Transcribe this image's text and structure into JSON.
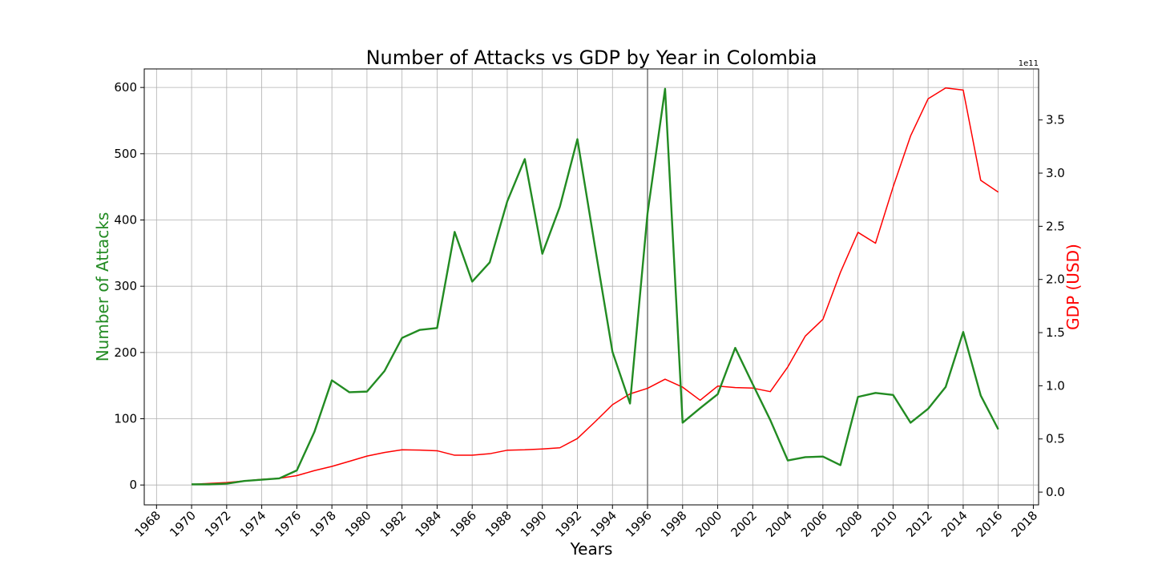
{
  "chart_data": {
    "type": "line",
    "title": "Number of Attacks vs GDP by Year in Colombia",
    "xlabel": "Years",
    "ylabel": "Number of Attacks",
    "y2label": "GDP (USD)",
    "y2_offset_label": "1e11",
    "xlim": [
      1967.3,
      2018.3
    ],
    "ylim": [
      -30,
      628
    ],
    "y2lim": [
      -1.2,
      39.8
    ],
    "grid": true,
    "x_ticks": [
      1968,
      1970,
      1972,
      1974,
      1976,
      1978,
      1980,
      1982,
      1984,
      1986,
      1988,
      1990,
      1992,
      1994,
      1996,
      1998,
      2000,
      2002,
      2004,
      2006,
      2008,
      2010,
      2012,
      2014,
      2016,
      2018
    ],
    "y_ticks": [
      0,
      100,
      200,
      300,
      400,
      500,
      600
    ],
    "y2_ticks": [
      0.0,
      0.5,
      1.0,
      1.5,
      2.0,
      2.5,
      3.0,
      3.5
    ],
    "vline_x": 1996,
    "colors": {
      "attacks": "#228B22",
      "gdp": "#ff0000",
      "vline": "#808080",
      "grid": "#b0b0b0"
    },
    "x": [
      1970,
      1971,
      1972,
      1973,
      1974,
      1975,
      1976,
      1977,
      1978,
      1979,
      1980,
      1981,
      1982,
      1983,
      1984,
      1985,
      1986,
      1987,
      1988,
      1989,
      1990,
      1991,
      1992,
      1993,
      1994,
      1995,
      1996,
      1997,
      1998,
      1999,
      2000,
      2001,
      2002,
      2003,
      2004,
      2005,
      2006,
      2007,
      2008,
      2009,
      2010,
      2011,
      2012,
      2013,
      2014,
      2015,
      2016
    ],
    "series": [
      {
        "key": "attacks",
        "axis": "left",
        "values": [
          1,
          1,
          2,
          6,
          8,
          10,
          22,
          80,
          158,
          140,
          141,
          172,
          222,
          234,
          237,
          382,
          307,
          336,
          428,
          492,
          349,
          420,
          522,
          360,
          201,
          123,
          410,
          598,
          94,
          116,
          137,
          207,
          152,
          98,
          37,
          42,
          43,
          30,
          133,
          139,
          136,
          94,
          115,
          148,
          231,
          135,
          84
        ]
      },
      {
        "key": "gdp",
        "axis": "right",
        "values": [
          0.72,
          0.82,
          0.9,
          1.05,
          1.2,
          1.3,
          1.55,
          2.02,
          2.42,
          2.9,
          3.39,
          3.73,
          3.98,
          3.95,
          3.89,
          3.47,
          3.47,
          3.61,
          3.94,
          3.98,
          4.06,
          4.17,
          5.04,
          6.6,
          8.22,
          9.24,
          9.76,
          10.62,
          9.87,
          8.64,
          9.97,
          9.83,
          9.78,
          9.45,
          11.78,
          14.68,
          16.25,
          20.67,
          24.43,
          23.41,
          28.68,
          33.5,
          36.99,
          38.01,
          37.81,
          29.32,
          28.21
        ]
      }
    ]
  }
}
